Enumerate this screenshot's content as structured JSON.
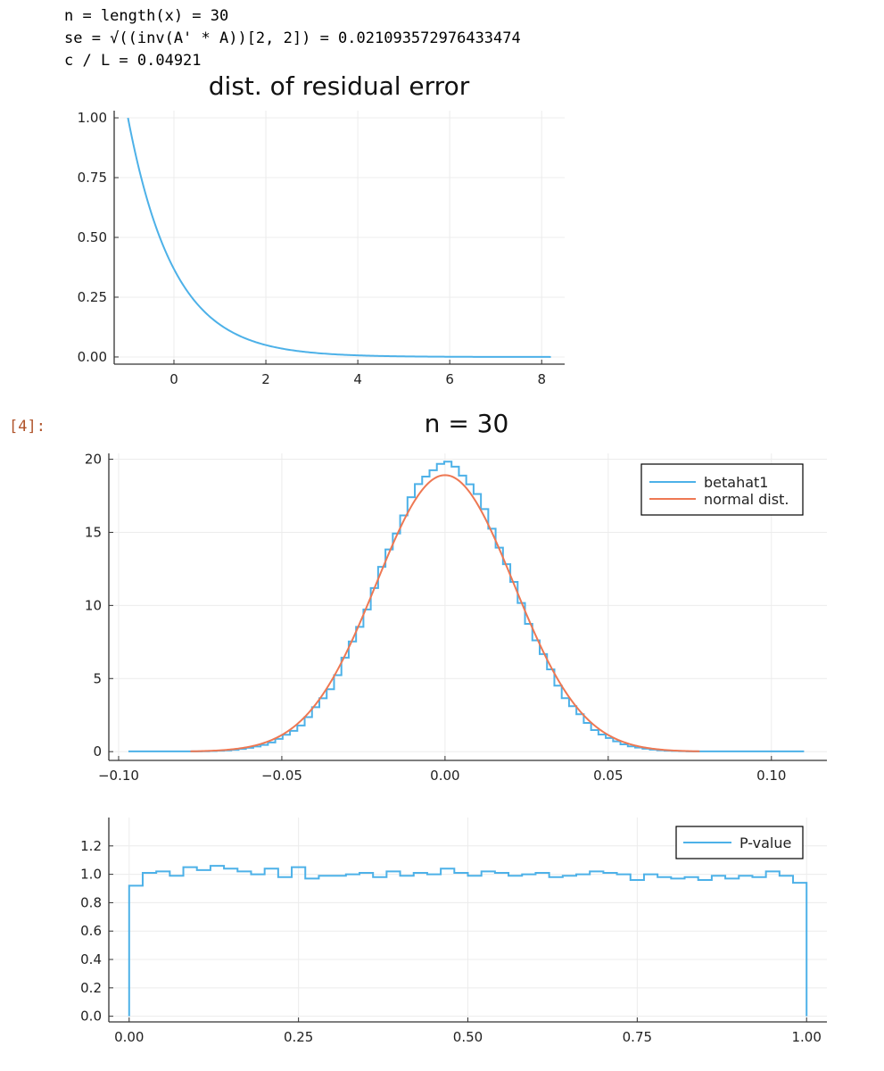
{
  "output": {
    "lines": [
      "n = length(x) = 30",
      "se = √((inv(A' * A))[2, 2]) = 0.021093572976433474",
      "c / L = 0.04921"
    ],
    "cell_prompt": "[4]:"
  },
  "colors": {
    "series1": "#4db1e8",
    "series2": "#ee7853",
    "grid": "#ececec",
    "axis": "#333333"
  },
  "chart_data": [
    {
      "type": "line",
      "title": "dist. of residual error",
      "xlabel": "",
      "ylabel": "",
      "xlim": [
        -1.3,
        8.5
      ],
      "ylim": [
        -0.03,
        1.03
      ],
      "xticks": [
        0,
        2,
        4,
        6,
        8
      ],
      "xtick_labels": [
        "0",
        "2",
        "4",
        "6",
        "8"
      ],
      "yticks": [
        0,
        0.25,
        0.5,
        0.75,
        1.0
      ],
      "ytick_labels": [
        "0.00",
        "0.25",
        "0.50",
        "0.75",
        "1.00"
      ],
      "grid": true,
      "legend": "none",
      "series": [
        {
          "curve": "exp(-(x+1))",
          "x_range": [
            -1,
            8.2
          ]
        }
      ]
    },
    {
      "type": "line",
      "title": "n = 30",
      "xlabel": "",
      "ylabel": "",
      "xlim": [
        -0.103,
        0.117
      ],
      "ylim": [
        -0.6,
        20.4
      ],
      "xticks": [
        -0.1,
        -0.05,
        0,
        0.05,
        0.1
      ],
      "xtick_labels": [
        "−0.10",
        "−0.05",
        "0.00",
        "0.05",
        "0.10"
      ],
      "yticks": [
        0,
        5,
        10,
        15,
        20
      ],
      "ytick_labels": [
        "0",
        "5",
        "10",
        "15",
        "20"
      ],
      "grid": true,
      "legend": "top-right",
      "series": [
        {
          "name": "betahat1",
          "style": "step-histogram",
          "density_sd": 0.0203,
          "peak": 19.7,
          "x_range": [
            -0.097,
            0.11
          ],
          "bin_width": 0.00225
        },
        {
          "name": "normal dist.",
          "style": "normal-pdf",
          "mean": 0,
          "sd": 0.021093572976433474,
          "x_range": [
            -0.078,
            0.078
          ]
        }
      ]
    },
    {
      "type": "line",
      "title": "",
      "xlabel": "",
      "ylabel": "",
      "xlim": [
        -0.03,
        1.03
      ],
      "ylim": [
        -0.04,
        1.4
      ],
      "xticks": [
        0,
        0.25,
        0.5,
        0.75,
        1.0
      ],
      "xtick_labels": [
        "0.00",
        "0.25",
        "0.50",
        "0.75",
        "1.00"
      ],
      "yticks": [
        0,
        0.2,
        0.4,
        0.6,
        0.8,
        1.0,
        1.2
      ],
      "ytick_labels": [
        "0.0",
        "0.2",
        "0.4",
        "0.6",
        "0.8",
        "1.0",
        "1.2"
      ],
      "grid": true,
      "legend": "top-right",
      "series": [
        {
          "name": "P-value",
          "style": "step-histogram",
          "bin_width": 0.02,
          "values": [
            0.92,
            1.01,
            1.02,
            0.99,
            1.05,
            1.03,
            1.06,
            1.04,
            1.02,
            1.0,
            1.04,
            0.98,
            1.05,
            0.97,
            0.99,
            0.99,
            1.0,
            1.01,
            0.98,
            1.02,
            0.99,
            1.01,
            1.0,
            1.04,
            1.01,
            0.99,
            1.02,
            1.01,
            0.99,
            1.0,
            1.01,
            0.98,
            0.99,
            1.0,
            1.02,
            1.01,
            1.0,
            0.96,
            1.0,
            0.98,
            0.97,
            0.98,
            0.96,
            0.99,
            0.97,
            0.99,
            0.98,
            1.02,
            0.99,
            0.94
          ]
        }
      ]
    }
  ]
}
